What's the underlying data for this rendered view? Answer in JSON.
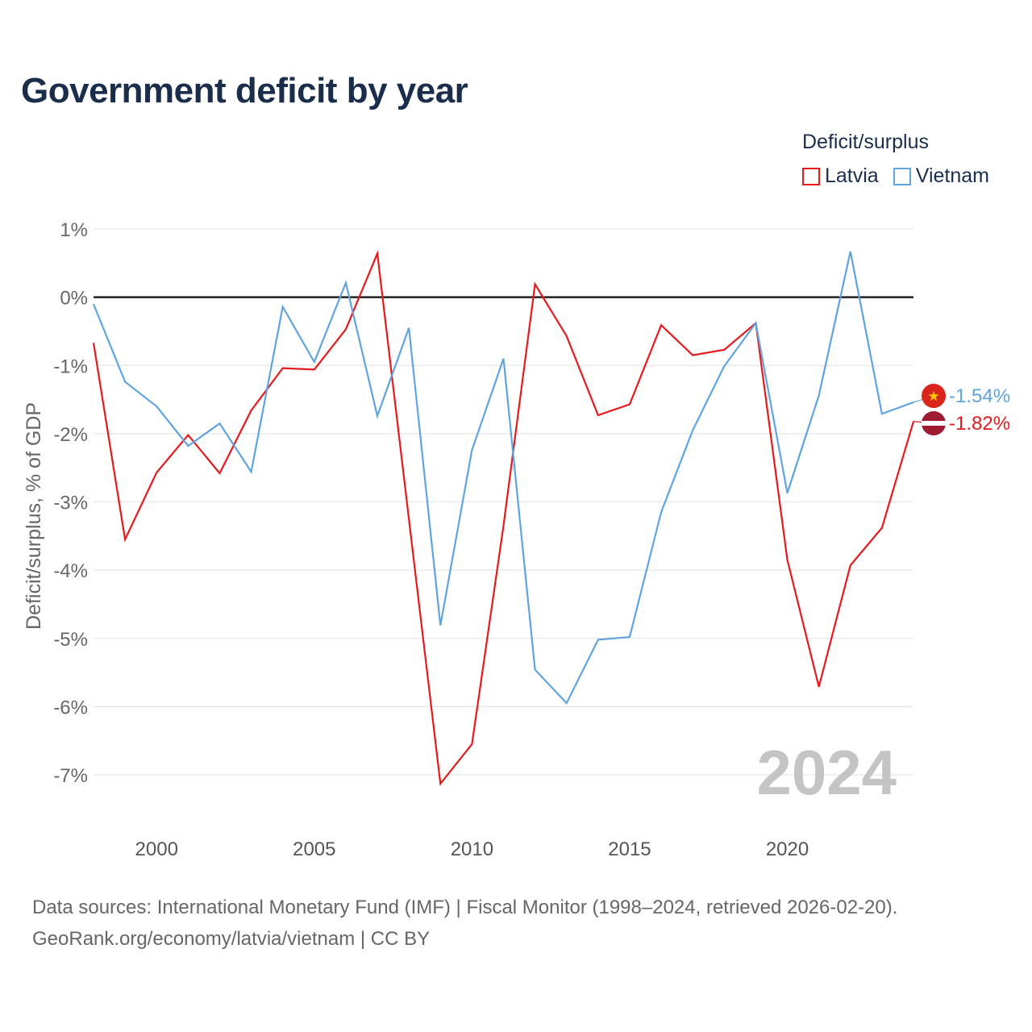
{
  "title": "Government deficit by year",
  "legend": {
    "title": "Deficit/surplus",
    "items": [
      {
        "label": "Latvia",
        "color": "#e8191d"
      },
      {
        "label": "Vietnam",
        "color": "#5fa4e0"
      }
    ]
  },
  "watermark_year": "2024",
  "source": {
    "line1": "Data sources: International Monetary Fund (IMF) | Fiscal Monitor (1998–2024, retrieved 2026-02-20).",
    "line2": "GeoRank.org/economy/latvia/vietnam | CC BY"
  },
  "chart_data": {
    "type": "line",
    "title": "Government deficit by year",
    "xlabel": "",
    "ylabel": "Deficit/surplus, % of GDP",
    "x": [
      1998,
      1999,
      2000,
      2001,
      2002,
      2003,
      2004,
      2005,
      2006,
      2007,
      2008,
      2009,
      2010,
      2011,
      2012,
      2013,
      2014,
      2015,
      2016,
      2017,
      2018,
      2019,
      2020,
      2021,
      2022,
      2023,
      2024
    ],
    "xlim": [
      1998,
      2024
    ],
    "ylim": [
      -7.7,
      1.0
    ],
    "xticks": [
      2000,
      2005,
      2010,
      2015,
      2020
    ],
    "xtick_labels": [
      "2000",
      "2005",
      "2010",
      "2015",
      "2020"
    ],
    "yticks": [
      1,
      0,
      -1,
      -2,
      -3,
      -4,
      -5,
      -6,
      -7
    ],
    "ytick_labels": [
      "1%",
      "0%",
      "-1%",
      "-2%",
      "-3%",
      "-4%",
      "-5%",
      "-6%",
      "-7%"
    ],
    "zero_line": true,
    "grid": true,
    "legend_position": "top-right",
    "series": [
      {
        "name": "Latvia",
        "color": "#e8191d",
        "values": [
          -0.67,
          -3.55,
          -2.57,
          -2.02,
          -2.58,
          -1.66,
          -1.04,
          -1.06,
          -0.47,
          0.64,
          -3.25,
          -7.13,
          -6.55,
          -3.35,
          0.19,
          -0.57,
          -1.73,
          -1.57,
          -0.41,
          -0.85,
          -0.77,
          -0.38,
          -3.85,
          -5.71,
          -3.93,
          -3.38,
          -1.82
        ],
        "end_label": "-1.82%"
      },
      {
        "name": "Vietnam",
        "color": "#5fa4e0",
        "values": [
          -0.1,
          -1.24,
          -1.6,
          -2.18,
          -1.85,
          -2.56,
          -0.14,
          -0.95,
          0.21,
          -1.74,
          -0.45,
          -4.81,
          -2.24,
          -0.9,
          -5.46,
          -5.95,
          -5.02,
          -4.98,
          -3.15,
          -1.95,
          -1.01,
          -0.38,
          -2.87,
          -1.44,
          0.67,
          -1.71,
          -1.54
        ],
        "end_label": "-1.54%"
      }
    ]
  }
}
